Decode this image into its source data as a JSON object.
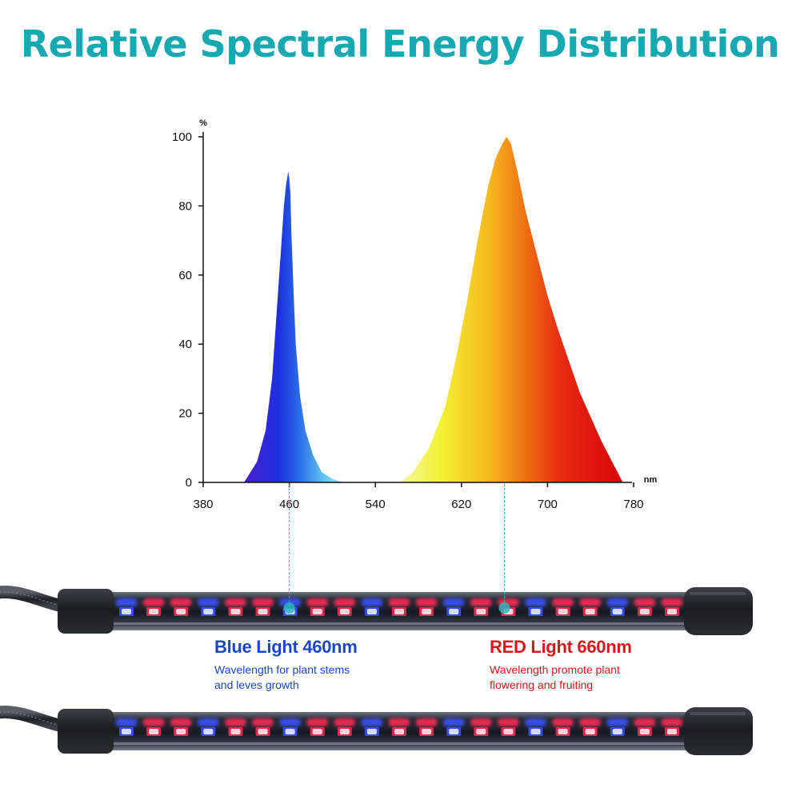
{
  "title": "Relative Spectral Energy Distribution",
  "colors": {
    "title": "#17a9b1",
    "blue_text": "#1a46c8",
    "red_text": "#e0151b",
    "marker": "#2bb7bd"
  },
  "chart_data": {
    "type": "area",
    "title": "Relative Spectral Energy Distribution",
    "xlabel": "",
    "ylabel": "",
    "x_unit": "nm",
    "y_unit": "%",
    "xlim": [
      380,
      780
    ],
    "ylim": [
      0,
      100
    ],
    "x_ticks": [
      380,
      460,
      540,
      620,
      700,
      780
    ],
    "y_ticks": [
      0,
      20,
      40,
      60,
      80,
      100
    ],
    "grid": false,
    "series": [
      {
        "color": "#1f33d6",
        "x": [
          418,
          430,
          438,
          444,
          448,
          452,
          455,
          457,
          458,
          459,
          460,
          461,
          462,
          464,
          466,
          470,
          475,
          482,
          490,
          500,
          510
        ],
        "y": [
          0,
          6,
          15,
          30,
          48,
          66,
          80,
          86,
          88,
          90,
          88,
          84,
          72,
          55,
          40,
          25,
          15,
          8,
          3,
          1,
          0
        ]
      },
      {
        "color": "#f2b21a",
        "x": [
          563,
          575,
          590,
          605,
          615,
          625,
          635,
          645,
          652,
          658,
          662,
          666,
          672,
          680,
          690,
          700,
          710,
          720,
          730,
          740,
          750,
          760,
          765,
          770
        ],
        "y": [
          0,
          3,
          10,
          22,
          36,
          52,
          70,
          86,
          94,
          98,
          100,
          98,
          90,
          78,
          66,
          54,
          44,
          35,
          26,
          19,
          12,
          6,
          3,
          0
        ]
      }
    ],
    "markers": [
      460,
      660
    ]
  },
  "captions": {
    "blue": {
      "head": "Blue Light 460nm",
      "desc1": "Wavelength for plant stems",
      "desc2": "and leves growth"
    },
    "red": {
      "head": "RED Light 660nm",
      "desc1": "Wavelength promote plant",
      "desc2": "flowering and fruiting"
    }
  }
}
